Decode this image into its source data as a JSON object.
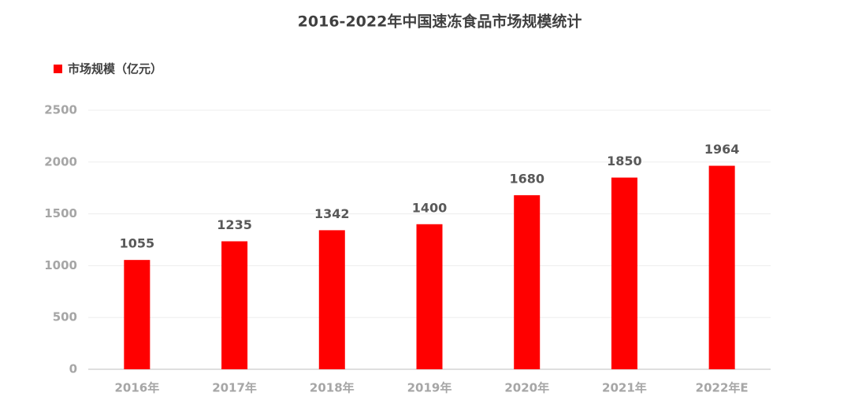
{
  "chart_data": {
    "type": "bar",
    "title": "2016-2022年中国速冻食品市场规模统计",
    "categories": [
      "2016年",
      "2017年",
      "2018年",
      "2019年",
      "2020年",
      "2021年",
      "2022年E"
    ],
    "series": [
      {
        "name": "市场规模（亿元）",
        "color": "#ff0000",
        "values": [
          1055,
          1235,
          1342,
          1400,
          1680,
          1850,
          1964
        ]
      }
    ],
    "ylim": [
      0,
      2500
    ],
    "yticks": [
      0,
      500,
      1000,
      1500,
      2000,
      2500
    ],
    "grid": true,
    "legend": "top-left"
  }
}
